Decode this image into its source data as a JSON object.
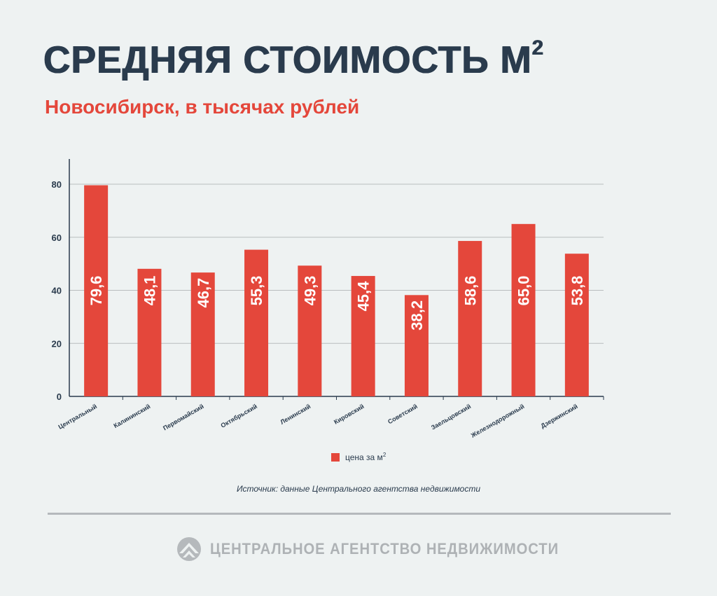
{
  "header": {
    "title": "СРЕДНЯЯ СТОИМОСТЬ М",
    "title_sup": "2",
    "subtitle": "Новосибирск, в тысячах рублей"
  },
  "legend": {
    "label": "цена за м",
    "label_sup": "2"
  },
  "source": "Источник: данные Центрального агентства недвижимости",
  "footer": {
    "brand": "ЦЕНТРАЛЬНОЕ АГЕНТСТВО НЕДВИЖИМОСТИ",
    "logo_icon": "mountain-chevron-logo-icon"
  },
  "colors": {
    "bar": "#e4473b",
    "title": "#2a3b4d",
    "subtitle": "#e4473b",
    "grid": "#b8bdbe",
    "background": "#eef2f2"
  },
  "chart_data": {
    "type": "bar",
    "categories": [
      "Центральный",
      "Калининский",
      "Первомайский",
      "Октябрьский",
      "Ленинский",
      "Кировский",
      "Советский",
      "Заельцовский",
      "Железнодорожный",
      "Дзержинский"
    ],
    "series": [
      {
        "name": "цена за м²",
        "values": [
          79.6,
          48.1,
          46.7,
          55.3,
          49.3,
          45.4,
          38.2,
          58.6,
          65.0,
          53.8
        ],
        "labels": [
          "79,6",
          "48,1",
          "46,7",
          "55,3",
          "49,3",
          "45,4",
          "38,2",
          "58,6",
          "65,0",
          "53,8"
        ]
      }
    ],
    "yticks": [
      0,
      20,
      40,
      60,
      80
    ],
    "ylim": [
      0,
      90
    ],
    "grid": true,
    "legend_position": "bottom-center",
    "data_labels": "inside-rotated"
  }
}
